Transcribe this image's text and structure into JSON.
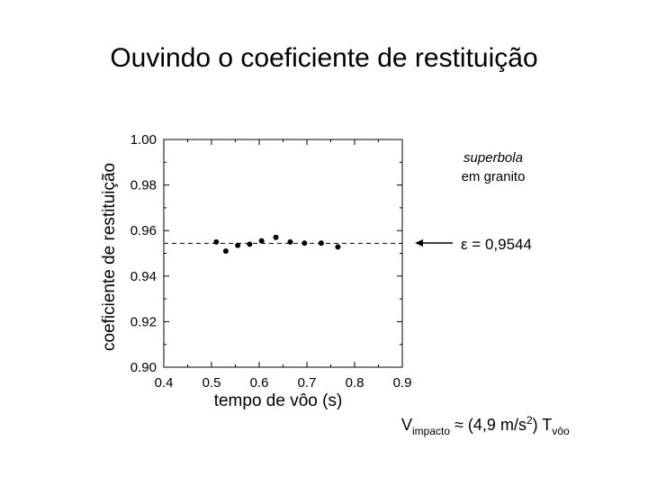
{
  "slide": {
    "title": "Ouvindo o coeficiente de restituição"
  },
  "formula": {
    "v_main": "V",
    "v_sub": "impacto",
    "approx": " ≈ (4,9 m/s",
    "exp": "2",
    "close": ") T",
    "t_sub": "vôo"
  },
  "chart_data": {
    "type": "scatter",
    "title": "",
    "xlabel": "tempo de vôo (s)",
    "ylabel": "coeficiente de restituição",
    "xlim": [
      0.4,
      0.9
    ],
    "ylim": [
      0.9,
      1.0
    ],
    "x_major_ticks": [
      0.4,
      0.5,
      0.6,
      0.7,
      0.8,
      0.9
    ],
    "x_tick_labels": [
      "0.4",
      "0.5",
      "0.6",
      "0.7",
      "0.8",
      "0.9"
    ],
    "y_major_ticks": [
      0.9,
      0.92,
      0.94,
      0.96,
      0.98,
      1.0
    ],
    "y_tick_labels": [
      "0.90",
      "0.92",
      "0.94",
      "0.96",
      "0.98",
      "1.00"
    ],
    "grid": false,
    "legend": "none",
    "points": [
      {
        "x": 0.51,
        "y": 0.955
      },
      {
        "x": 0.53,
        "y": 0.951
      },
      {
        "x": 0.555,
        "y": 0.9535
      },
      {
        "x": 0.58,
        "y": 0.954
      },
      {
        "x": 0.605,
        "y": 0.9555
      },
      {
        "x": 0.635,
        "y": 0.957
      },
      {
        "x": 0.665,
        "y": 0.955
      },
      {
        "x": 0.695,
        "y": 0.9545
      },
      {
        "x": 0.73,
        "y": 0.9545
      },
      {
        "x": 0.765,
        "y": 0.9528
      }
    ],
    "reference_line": {
      "y": 0.9544,
      "style": "dashed"
    },
    "annotations": {
      "material_line1": "superbola",
      "material_line2": "em granito",
      "epsilon_label": "ε = 0,9544"
    },
    "colors": {
      "points": "#000000",
      "axes": "#000000"
    }
  }
}
